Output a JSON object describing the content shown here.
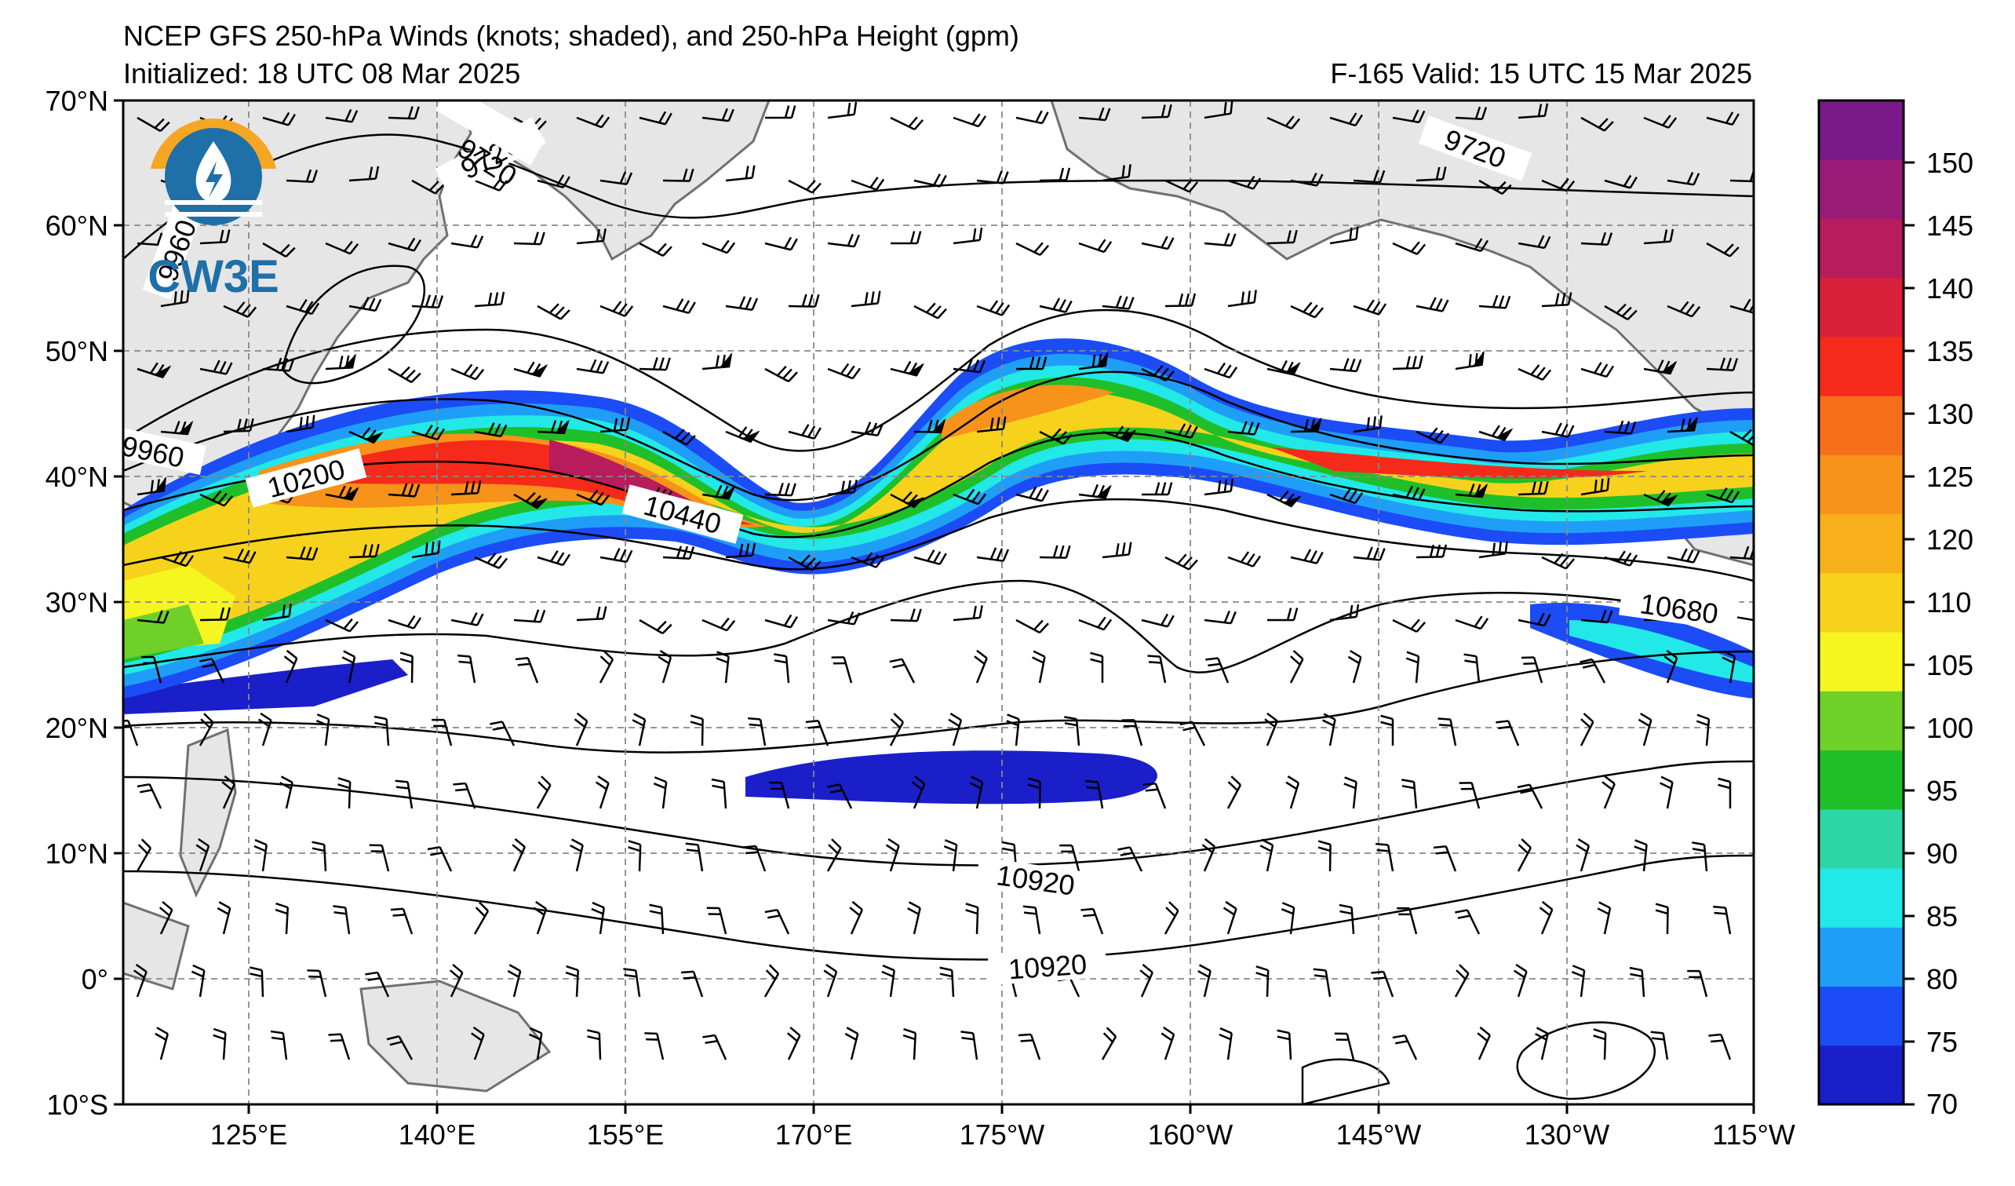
{
  "titles": {
    "main": "NCEP GFS 250-hPa Winds (knots; shaded), and 250-hPa Height (gpm)",
    "initialized": "Initialized: 18 UTC 08 Mar 2025",
    "valid": "F-165  Valid: 15 UTC 15 Mar 2025"
  },
  "logo": {
    "text": "CW3E",
    "colors": {
      "orange": "#f5a623",
      "blue": "#1f6fa8"
    }
  },
  "map": {
    "lat_labels": [
      "70°N",
      "60°N",
      "50°N",
      "40°N",
      "30°N",
      "20°N",
      "10°N",
      "0°",
      "10°S"
    ],
    "lon_labels": [
      "125°E",
      "140°E",
      "155°E",
      "170°E",
      "175°W",
      "160°W",
      "145°W",
      "130°W",
      "115°W"
    ],
    "height_contour_labels": [
      "9720",
      "9720",
      "9720",
      "9960",
      "9960",
      "10200",
      "10440",
      "10680",
      "10920",
      "10920"
    ]
  },
  "colorbar": {
    "unit": "knots",
    "tick_labels": [
      "70",
      "75",
      "80",
      "85",
      "90",
      "95",
      "100",
      "105",
      "110",
      "120",
      "125",
      "130",
      "135",
      "140",
      "145",
      "150"
    ],
    "levels": [
      70,
      75,
      80,
      85,
      90,
      95,
      100,
      105,
      110,
      115,
      120,
      125,
      130,
      135,
      140,
      145,
      150,
      155
    ],
    "colors": [
      "#1a1fc9",
      "#1c4cf5",
      "#1f9ef7",
      "#22e8e8",
      "#2ed6a4",
      "#1fbf2a",
      "#6fd02a",
      "#f5f520",
      "#f7d21c",
      "#f7b01a",
      "#f7921a",
      "#f76f1a",
      "#f52a1a",
      "#d8203a",
      "#b81c5a",
      "#9a1a78",
      "#7a1a8a"
    ]
  }
}
